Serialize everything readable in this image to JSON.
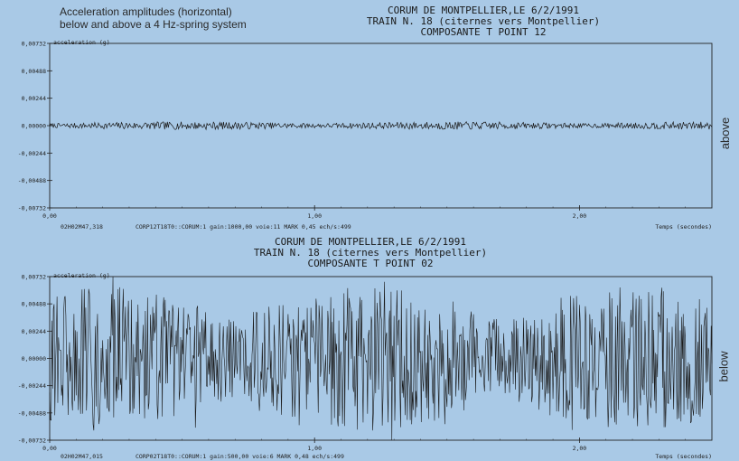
{
  "caption": {
    "line1": "Acceleration amplitudes (horizontal)",
    "line2": "below and above a 4 Hz-spring system"
  },
  "chart_data": [
    {
      "type": "line",
      "title_lines": [
        "CORUM DE MONTPELLIER,LE 6/2/1991",
        "TRAIN N. 18 (citernes vers Montpellier)",
        "COMPOSANTE T POINT 12"
      ],
      "ylabel": "acceleration (g)",
      "xlabel": "Temps (secondes)",
      "ylim": [
        -0.00732,
        0.00732
      ],
      "xlim": [
        0,
        2.5
      ],
      "yticks": [
        "0,00732",
        "0,00488",
        "0,00244",
        "0,00000",
        "-0,00244",
        "-0,00488",
        "-0,00732"
      ],
      "ytick_values": [
        0.00732,
        0.00488,
        0.00244,
        0,
        -0.00244,
        -0.00488,
        -0.00732
      ],
      "xticks": [
        "0,00",
        "1,00",
        "2,00"
      ],
      "xtick_values": [
        0,
        1,
        2
      ],
      "footer_left": "02H02M47,318",
      "footer_mid": "CORP12T18T0::CORUM:1 gain:1000,00 voie:11 MARK 0,45 ech/s:499",
      "side_label": "above",
      "series": [
        {
          "amplitude_g": 0.00035
        }
      ]
    },
    {
      "type": "line",
      "title_lines": [
        "CORUM DE MONTPELLIER,LE 6/2/1991",
        "TRAIN N. 18 (citernes vers Montpellier)",
        "COMPOSANTE T POINT 02"
      ],
      "ylabel": "acceleration (g)",
      "xlabel": "Temps (secondes)",
      "ylim": [
        -0.00732,
        0.00732
      ],
      "xlim": [
        0,
        2.5
      ],
      "yticks": [
        "0,00732",
        "0,00488",
        "0,00244",
        "0,00000",
        "-0,00244",
        "-0,00488",
        "-0,00732"
      ],
      "ytick_values": [
        0.00732,
        0.00488,
        0.00244,
        0,
        -0.00244,
        -0.00488,
        -0.00732
      ],
      "xticks": [
        "0,00",
        "1,00",
        "2,00"
      ],
      "xtick_values": [
        0,
        1,
        2
      ],
      "footer_left": "02H02M47,015",
      "footer_mid": "CORP02T18T0::CORUM:1 gain:500,00 voie:6 MARK 0,48 ech/s:499",
      "side_label": "below",
      "series": [
        {
          "amplitude_g": 0.0065
        }
      ]
    }
  ]
}
